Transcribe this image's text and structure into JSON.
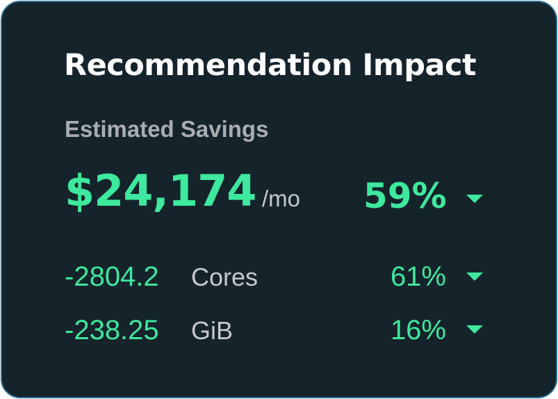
{
  "card": {
    "title": "Recommendation Impact",
    "subtitle": "Estimated Savings",
    "savings": {
      "amount": "$24,174",
      "period": "/mo",
      "percent": "59%",
      "trend": "down"
    },
    "metrics": [
      {
        "value": "-2804.2",
        "unit": "Cores",
        "percent": "61%",
        "trend": "down"
      },
      {
        "value": "-238.25",
        "unit": "GiB",
        "percent": "16%",
        "trend": "down"
      }
    ],
    "icons": {
      "trend": "caret-down-icon"
    },
    "colors": {
      "background": "#15232b",
      "border": "#2b6f93",
      "accent": "#3ee89e",
      "title": "#ffffff",
      "muted": "#a9adb1"
    }
  }
}
